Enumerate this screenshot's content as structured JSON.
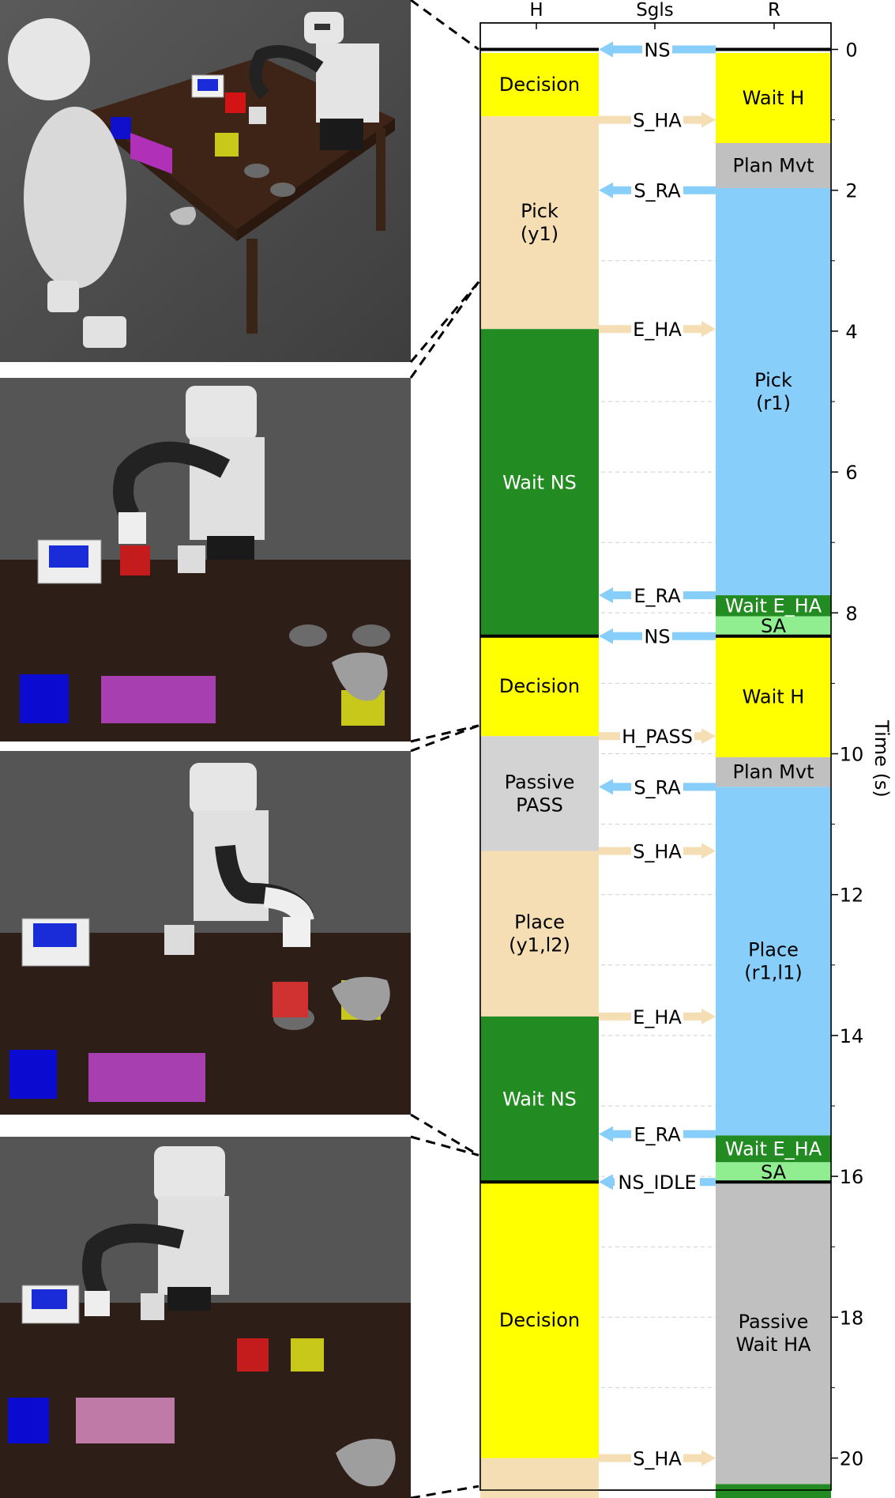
{
  "columns": {
    "h": "H",
    "signals": "Sgls",
    "r": "R"
  },
  "axis": {
    "label": "Time (s)",
    "ticks": [
      {
        "t": 0,
        "label": "0"
      },
      {
        "t": 2,
        "label": "2"
      },
      {
        "t": 4,
        "label": "4"
      },
      {
        "t": 6,
        "label": "6"
      },
      {
        "t": 8,
        "label": "8"
      },
      {
        "t": 10,
        "label": "10"
      },
      {
        "t": 12,
        "label": "12"
      },
      {
        "t": 14,
        "label": "14"
      },
      {
        "t": 16,
        "label": "16"
      },
      {
        "t": 18,
        "label": "18"
      },
      {
        "t": 20,
        "label": "20"
      }
    ],
    "range": [
      -0.25,
      21.3
    ]
  },
  "colors": {
    "decision": "#ffff00",
    "action_h": "#f5deb3",
    "wait_ns": "#228b22",
    "passive": "#d3d3d3",
    "action_r": "#87cefa",
    "wait_ha": "#228b22",
    "sa": "#90ee90",
    "plan": "#c0c0c0",
    "signal_h": "#f5deb3",
    "signal_r": "#87cefa",
    "sync_line": "#000000"
  },
  "h_segments": [
    {
      "start": 0.05,
      "end": 0.95,
      "label": "Decision",
      "kind": "decision"
    },
    {
      "start": 0.95,
      "end": 3.97,
      "label": "Pick\n(y1)",
      "kind": "action_h"
    },
    {
      "start": 3.97,
      "end": 8.33,
      "label": "Wait NS",
      "kind": "wait_ns"
    },
    {
      "start": 8.33,
      "end": 9.75,
      "label": "Decision",
      "kind": "decision"
    },
    {
      "start": 9.75,
      "end": 11.38,
      "label": "Passive\nPASS",
      "kind": "passive"
    },
    {
      "start": 11.38,
      "end": 13.73,
      "label": "Place\n(y1,l2)",
      "kind": "action_h"
    },
    {
      "start": 13.73,
      "end": 16.08,
      "label": "Wait NS",
      "kind": "wait_ns"
    },
    {
      "start": 16.08,
      "end": 20.0,
      "label": "Decision",
      "kind": "decision"
    },
    {
      "start": 20.0,
      "end": 21.3,
      "label": "",
      "kind": "action_h"
    }
  ],
  "r_segments": [
    {
      "start": 0.05,
      "end": 1.33,
      "label": "Wait H",
      "kind": "decision"
    },
    {
      "start": 1.33,
      "end": 1.97,
      "label": "Plan Mvt",
      "kind": "plan"
    },
    {
      "start": 1.97,
      "end": 7.75,
      "label": "Pick\n(r1)",
      "kind": "action_r"
    },
    {
      "start": 7.75,
      "end": 8.05,
      "label": "Wait E_HA",
      "kind": "wait_ha"
    },
    {
      "start": 8.05,
      "end": 8.33,
      "label": "SA",
      "kind": "sa"
    },
    {
      "start": 8.33,
      "end": 10.05,
      "label": "Wait H",
      "kind": "decision"
    },
    {
      "start": 10.05,
      "end": 10.47,
      "label": "Plan Mvt",
      "kind": "plan"
    },
    {
      "start": 10.47,
      "end": 15.42,
      "label": "Place\n(r1,l1)",
      "kind": "action_r"
    },
    {
      "start": 15.42,
      "end": 15.8,
      "label": "Wait E_HA",
      "kind": "wait_ha"
    },
    {
      "start": 15.8,
      "end": 16.08,
      "label": "SA",
      "kind": "sa"
    },
    {
      "start": 16.08,
      "end": 20.37,
      "label": "Passive\nWait HA",
      "kind": "plan"
    },
    {
      "start": 20.37,
      "end": 21.3,
      "label": "",
      "kind": "wait_ha"
    }
  ],
  "signals": [
    {
      "t": 0.0,
      "label": "NS",
      "dir": "left"
    },
    {
      "t": 1.0,
      "label": "S_HA",
      "dir": "right"
    },
    {
      "t": 2.0,
      "label": "S_RA",
      "dir": "left"
    },
    {
      "t": 3.97,
      "label": "E_HA",
      "dir": "right"
    },
    {
      "t": 7.75,
      "label": "E_RA",
      "dir": "left"
    },
    {
      "t": 8.33,
      "label": "NS",
      "dir": "left"
    },
    {
      "t": 9.75,
      "label": "H_PASS",
      "dir": "right"
    },
    {
      "t": 10.47,
      "label": "S_RA",
      "dir": "left"
    },
    {
      "t": 11.38,
      "label": "S_HA",
      "dir": "right"
    },
    {
      "t": 13.73,
      "label": "E_HA",
      "dir": "right"
    },
    {
      "t": 15.4,
      "label": "E_RA",
      "dir": "left"
    },
    {
      "t": 16.08,
      "label": "NS_IDLE",
      "dir": "left"
    },
    {
      "t": 20.0,
      "label": "S_HA",
      "dir": "right"
    }
  ],
  "sync_lines": [
    0.0,
    8.33,
    16.08
  ],
  "scenes": [
    {
      "name": "scene-1"
    },
    {
      "name": "scene-2"
    },
    {
      "name": "scene-3"
    },
    {
      "name": "scene-4"
    }
  ]
}
